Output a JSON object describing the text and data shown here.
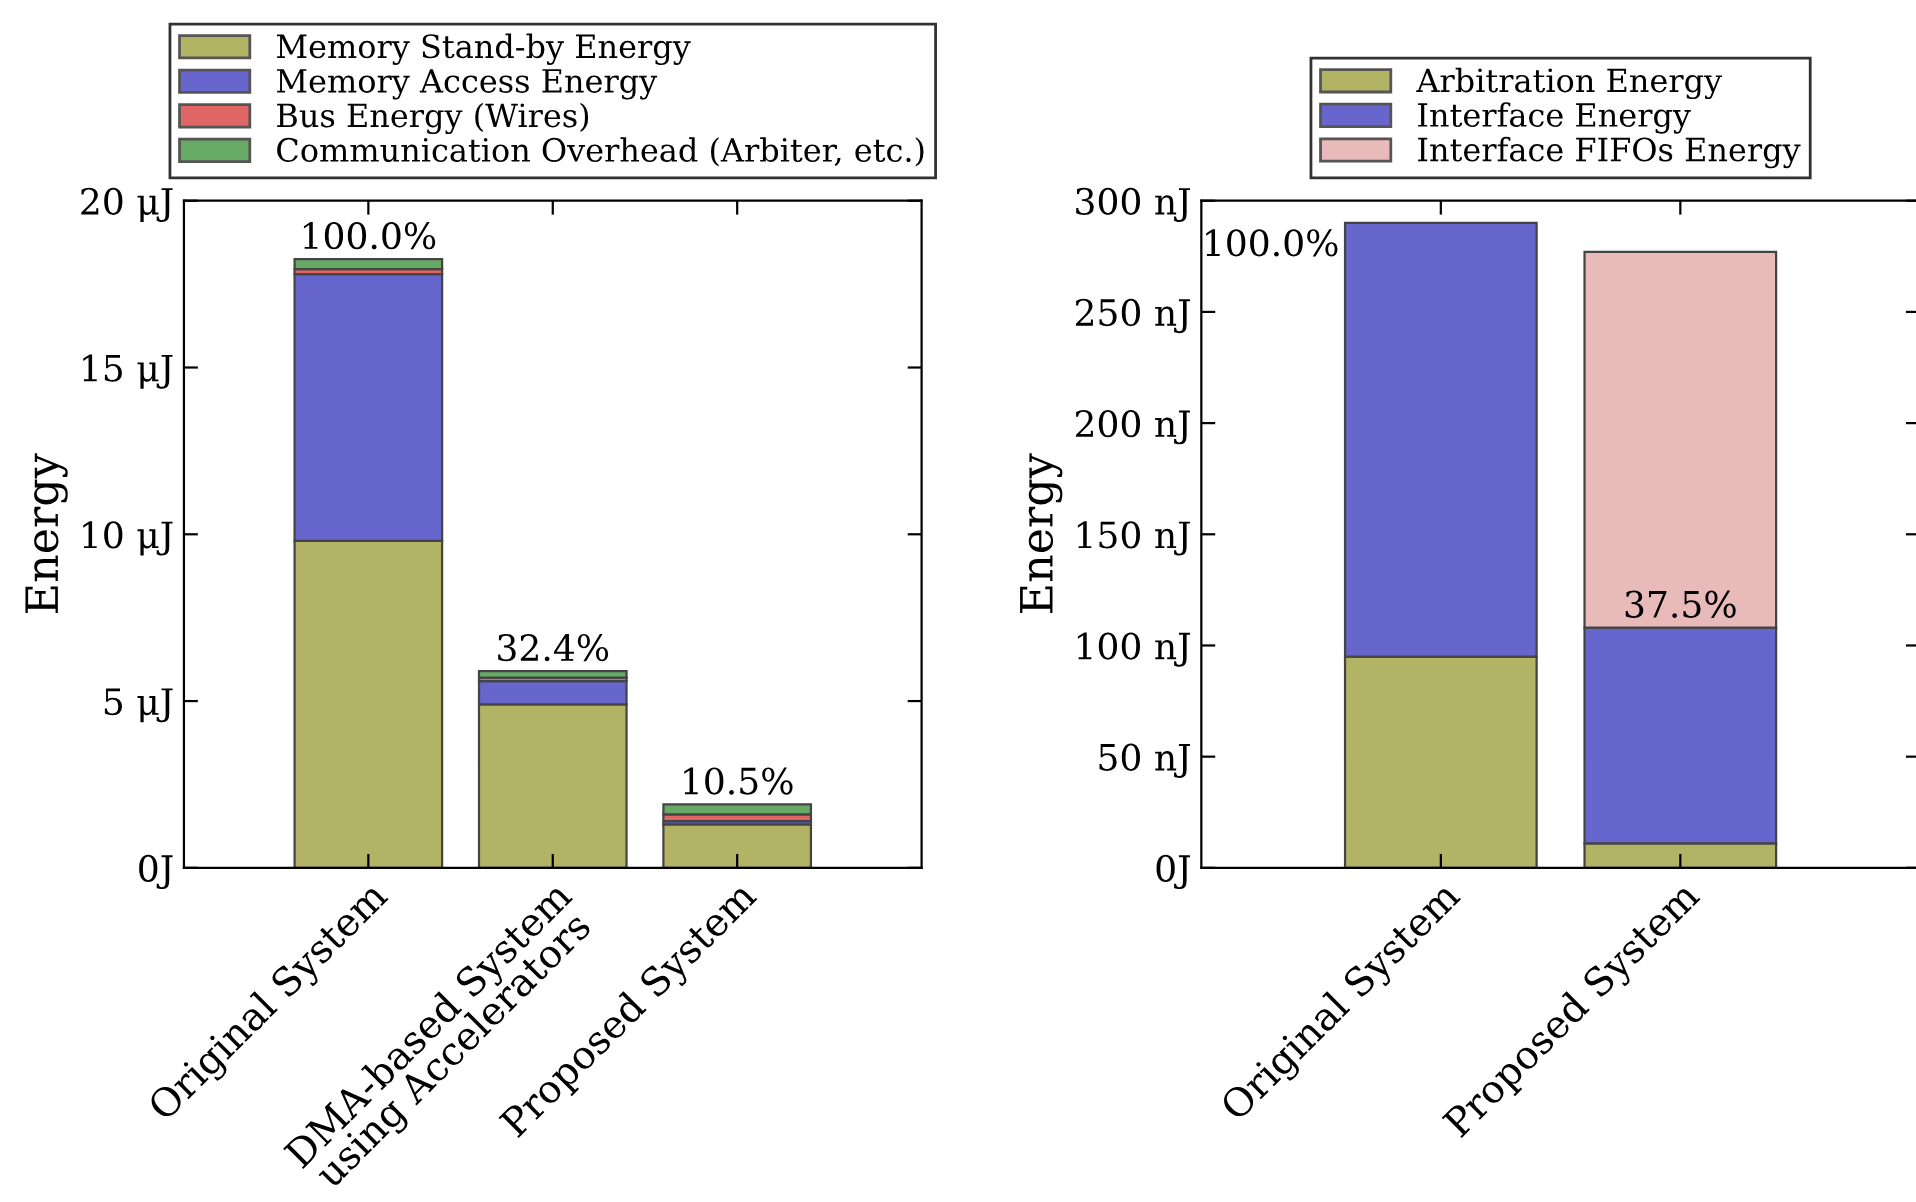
{
  "chart_data": [
    {
      "type": "bar",
      "stacked": true,
      "ylabel": "Energy",
      "legend": "top",
      "grid": false,
      "categories": [
        "Original System",
        "DMA-based System\nusing Accelerators",
        "Proposed System"
      ],
      "series": [
        {
          "name": "Memory Stand-by Energy",
          "color": "#b3b366",
          "values": [
            9.8,
            4.9,
            1.3
          ]
        },
        {
          "name": "Memory Access Energy",
          "color": "#6666cc",
          "values": [
            8.0,
            0.7,
            0.1
          ]
        },
        {
          "name": "Bus Energy (Wires)",
          "color": "#e06666",
          "values": [
            0.15,
            0.1,
            0.2
          ]
        },
        {
          "name": "Communication Overhead (Arbiter, etc.)",
          "color": "#66aa66",
          "values": [
            0.3,
            0.2,
            0.3
          ]
        }
      ],
      "ylim": [
        0,
        20
      ],
      "yticks": [
        {
          "value": 0,
          "label": "0J"
        },
        {
          "value": 5,
          "label": "5 μJ"
        },
        {
          "value": 10,
          "label": "10 μJ"
        },
        {
          "value": 15,
          "label": "15 μJ"
        },
        {
          "value": 20,
          "label": "20 μJ"
        }
      ],
      "annotations": [
        {
          "text": "100.0%",
          "x": "Original System",
          "y": 18.25
        },
        {
          "text": "32.4%",
          "x": "DMA-based System\nusing Accelerators",
          "y": 5.9
        },
        {
          "text": "10.5%",
          "x": "Proposed System",
          "y": 1.9
        }
      ]
    },
    {
      "type": "bar",
      "stacked": true,
      "ylabel": "Energy",
      "legend": "top",
      "grid": false,
      "categories": [
        "Original System",
        "Proposed System"
      ],
      "series": [
        {
          "name": "Arbitration Energy",
          "color": "#b3b366",
          "values": [
            95,
            11
          ]
        },
        {
          "name": "Interface Energy",
          "color": "#6666cc",
          "values": [
            195,
            97
          ]
        },
        {
          "name": "Interface FIFOs Energy",
          "color": "#e8baba",
          "values": [
            null,
            169
          ]
        }
      ],
      "ylim": [
        0,
        300
      ],
      "yticks": [
        {
          "value": 0,
          "label": "0J"
        },
        {
          "value": 50,
          "label": "50 nJ"
        },
        {
          "value": 100,
          "label": "100 nJ"
        },
        {
          "value": 150,
          "label": "150 nJ"
        },
        {
          "value": 200,
          "label": "200 nJ"
        },
        {
          "value": 250,
          "label": "250 nJ"
        },
        {
          "value": 300,
          "label": "300 nJ"
        }
      ],
      "annotations": [
        {
          "text": "100.0%",
          "x": "Original System",
          "y": 290
        },
        {
          "text": "37.5%",
          "x": "Proposed System",
          "y": 108
        }
      ]
    }
  ]
}
